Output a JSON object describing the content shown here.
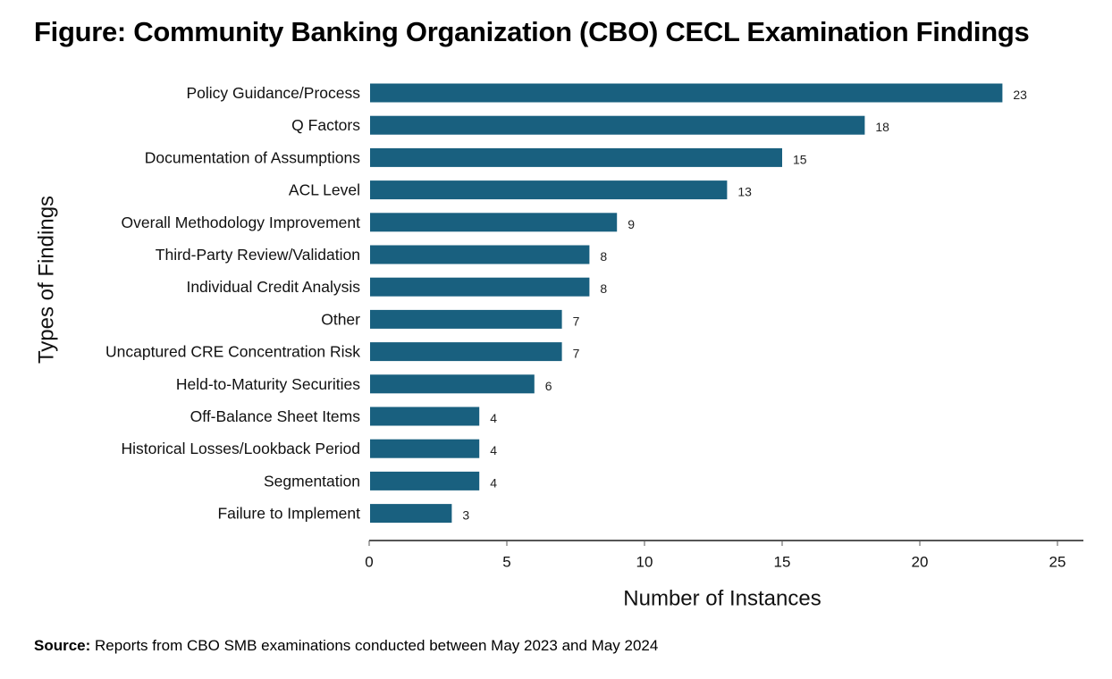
{
  "title": "Figure: Community Banking Organization (CBO) CECL Examination Findings",
  "source": {
    "label": "Source:",
    "text": "Reports from CBO SMB examinations conducted between May 2023 and May 2024"
  },
  "colors": {
    "bar": "#19607f",
    "axis": "#555555"
  },
  "chart_data": {
    "type": "bar",
    "orientation": "horizontal",
    "xlabel": "Number of Instances",
    "ylabel": "Types of Findings",
    "xlim": [
      0,
      25
    ],
    "xticks": [
      0,
      5,
      10,
      15,
      20,
      25
    ],
    "grid": false,
    "legend": false,
    "categories": [
      "Policy Guidance/Process",
      "Q Factors",
      "Documentation of Assumptions",
      "ACL Level",
      "Overall Methodology Improvement",
      "Third-Party Review/Validation",
      "Individual Credit Analysis",
      "Other",
      "Uncaptured CRE Concentration Risk",
      "Held-to-Maturity Securities",
      "Off-Balance Sheet Items",
      "Historical Losses/Lookback Period",
      "Segmentation",
      "Failure to Implement"
    ],
    "values": [
      23,
      18,
      15,
      13,
      9,
      8,
      8,
      7,
      7,
      6,
      4,
      4,
      4,
      3
    ]
  }
}
